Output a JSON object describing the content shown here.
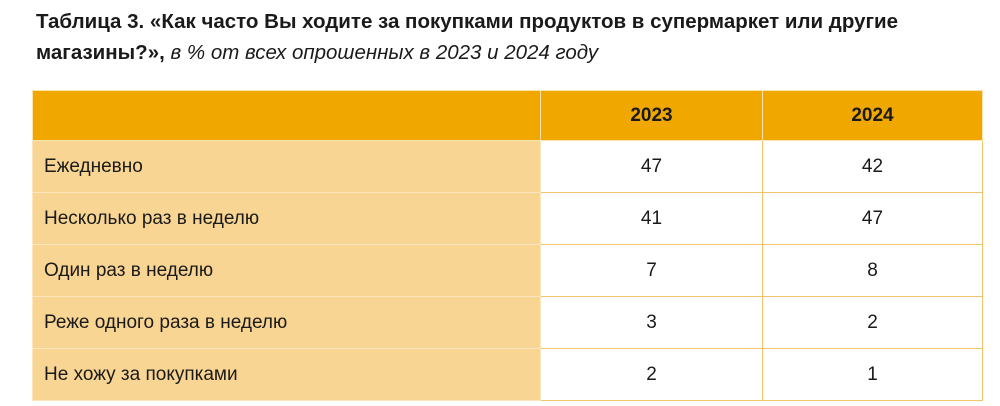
{
  "title": {
    "bold": "Таблица 3. «Как часто Вы ходите за покупками продуктов в супермаркет или другие магазины?»,",
    "italic": "в % от всех опрошенных в 2023 и 2024 году"
  },
  "table": {
    "columns": [
      "2023",
      "2024"
    ],
    "rows": [
      [
        "Ежедневно",
        47,
        42
      ],
      [
        "Несколько раз в неделю",
        41,
        47
      ],
      [
        "Один раз в неделю",
        7,
        8
      ],
      [
        "Реже одного раза в неделю",
        3,
        2
      ],
      [
        "Не хожу за покупками",
        2,
        1
      ]
    ]
  }
}
